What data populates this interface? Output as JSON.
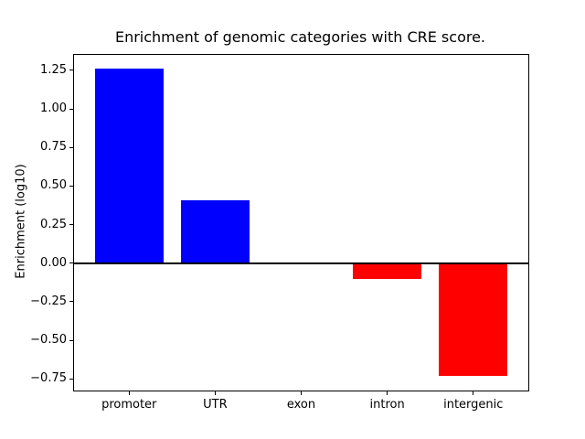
{
  "chart_data": {
    "type": "bar",
    "title": "Enrichment of genomic categories with CRE score.",
    "xlabel": "",
    "ylabel": "Enrichment (log10)",
    "categories": [
      "promoter",
      "UTR",
      "exon",
      "intron",
      "intergenic"
    ],
    "values": [
      1.26,
      0.41,
      0.0,
      -0.1,
      -0.73
    ],
    "bar_colors": [
      "#0000ff",
      "#0000ff",
      "#0000ff",
      "#ff0000",
      "#ff0000"
    ],
    "positive_color": "#0000ff",
    "negative_color": "#ff0000",
    "yticks": [
      {
        "value": 1.25,
        "label": "1.25"
      },
      {
        "value": 1.0,
        "label": "1.00"
      },
      {
        "value": 0.75,
        "label": "0.75"
      },
      {
        "value": 0.5,
        "label": "0.50"
      },
      {
        "value": 0.25,
        "label": "0.25"
      },
      {
        "value": 0.0,
        "label": "0.00"
      },
      {
        "value": -0.25,
        "label": "−0.25"
      },
      {
        "value": -0.5,
        "label": "−0.50"
      },
      {
        "value": -0.75,
        "label": "−0.75"
      }
    ],
    "ylim": [
      -0.825,
      1.35
    ],
    "xlim": [
      -0.64,
      4.64
    ],
    "bar_width": 0.8,
    "zero_line": true,
    "grid": false,
    "legend": null,
    "axis_color": "#000000",
    "background_color": "#ffffff"
  }
}
